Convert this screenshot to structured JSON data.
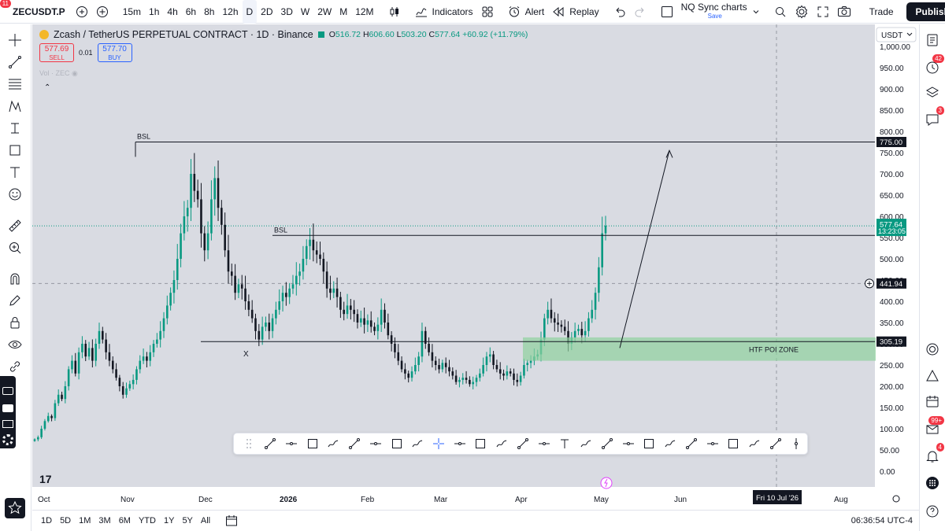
{
  "topbar": {
    "avatar_badge": "11",
    "symbol": "ZECUSDT.P",
    "timeframes": [
      "15m",
      "1h",
      "4h",
      "6h",
      "8h",
      "12h",
      "D",
      "2D",
      "3D",
      "W",
      "2W",
      "M",
      "12M"
    ],
    "active_timeframe": "D",
    "indicators_label": "Indicators",
    "alert_label": "Alert",
    "replay_label": "Replay",
    "layout_name": "NQ Sync charts",
    "layout_save": "Save",
    "trade_label": "Trade",
    "publish_label": "Publish"
  },
  "legend": {
    "title": "Zcash / TetherUS PERPETUAL CONTRACT · 1D · Binance",
    "o_lbl": "O",
    "o": "516.72",
    "h_lbl": "H",
    "h": "606.60",
    "l_lbl": "L",
    "l": "503.20",
    "c_lbl": "C",
    "c": "577.64",
    "change": "+60.92 (+11.79%)"
  },
  "trade_buttons": {
    "sell_price": "577.69",
    "sell_label": "SELL",
    "spread": "0.01",
    "buy_price": "577.70",
    "buy_label": "BUY"
  },
  "volume_label": "Vol · ZEC",
  "currency": "USDT",
  "right_badges": {
    "alerts": "42",
    "chats": "3",
    "notifications": "99+",
    "ideas": "4"
  },
  "price_scale": {
    "ticks": [
      "1,000.00",
      "950.00",
      "900.00",
      "850.00",
      "800.00",
      "750.00",
      "700.00",
      "650.00",
      "600.00",
      "550.00",
      "500.00",
      "450.00",
      "400.00",
      "350.00",
      "300.00",
      "250.00",
      "200.00",
      "150.00",
      "100.00",
      "50.00",
      "0.00"
    ],
    "level_775": "775.00",
    "last_price": "577.64",
    "countdown": "13:23:05",
    "crosshair_price": "441.94",
    "level_305": "305.19"
  },
  "time_scale": {
    "labels": [
      "Oct",
      "Nov",
      "Dec",
      "2026",
      "Feb",
      "Mar",
      "Apr",
      "May",
      "Jun",
      "Aug"
    ],
    "crosshair_date": "Fri 10 Jul '26"
  },
  "annotations": {
    "bsl_top": "BSL",
    "bsl_mid": "BSL",
    "x_mark": "X",
    "zone_label": "HTF POI ZONE"
  },
  "bottom": {
    "ranges": [
      "1D",
      "5D",
      "1M",
      "3M",
      "6M",
      "YTD",
      "1Y",
      "5Y",
      "All"
    ],
    "clock": "06:36:54 UTC-4"
  },
  "colors": {
    "up": "#089981",
    "down": "#131722",
    "zone": "#8fd19e",
    "accent": "#2962ff",
    "sell": "#f23645"
  },
  "chart_data": {
    "type": "candlestick",
    "symbol": "ZECUSDT.P",
    "interval": "1D",
    "ylim": [
      0,
      1000
    ],
    "levels": [
      {
        "label": "BSL",
        "price": 775.0
      },
      {
        "label": "BSL",
        "price": 555
      },
      {
        "label": "X",
        "price": 305.19
      }
    ],
    "zone": {
      "label": "HTF POI ZONE",
      "low": 260,
      "high": 315
    },
    "last": {
      "o": 516.72,
      "h": 606.6,
      "l": 503.2,
      "c": 577.64
    },
    "closes": [
      75,
      80,
      100,
      118,
      130,
      125,
      160,
      180,
      170,
      200,
      240,
      260,
      230,
      280,
      300,
      270,
      290,
      260,
      300,
      330,
      310,
      280,
      260,
      240,
      220,
      200,
      180,
      195,
      205,
      215,
      240,
      260,
      270,
      260,
      280,
      300,
      310,
      330,
      360,
      390,
      420,
      450,
      500,
      560,
      600,
      620,
      700,
      660,
      640,
      560,
      520,
      560,
      640,
      690,
      620,
      580,
      520,
      470,
      460,
      420,
      440,
      430,
      400,
      380,
      360,
      330,
      310,
      340,
      350,
      330,
      360,
      380,
      400,
      420,
      410,
      430,
      440,
      460,
      470,
      500,
      530,
      545,
      520,
      510,
      500,
      470,
      430,
      420,
      430,
      410,
      380,
      370,
      390,
      380,
      370,
      350,
      360,
      345,
      355,
      340,
      330,
      345,
      380,
      350,
      320,
      300,
      280,
      260,
      240,
      230,
      220,
      235,
      250,
      270,
      330,
      300,
      280,
      260,
      250,
      240,
      255,
      245,
      235,
      225,
      210,
      215,
      220,
      215,
      205,
      210,
      220,
      230,
      250,
      270,
      275,
      250,
      240,
      230,
      225,
      235,
      230,
      215,
      210,
      225,
      250,
      255,
      260,
      270,
      275,
      310,
      360,
      380,
      360,
      350,
      345,
      340,
      330,
      300,
      315,
      330,
      335,
      320,
      330,
      360,
      380,
      420,
      480,
      560,
      578
    ]
  }
}
